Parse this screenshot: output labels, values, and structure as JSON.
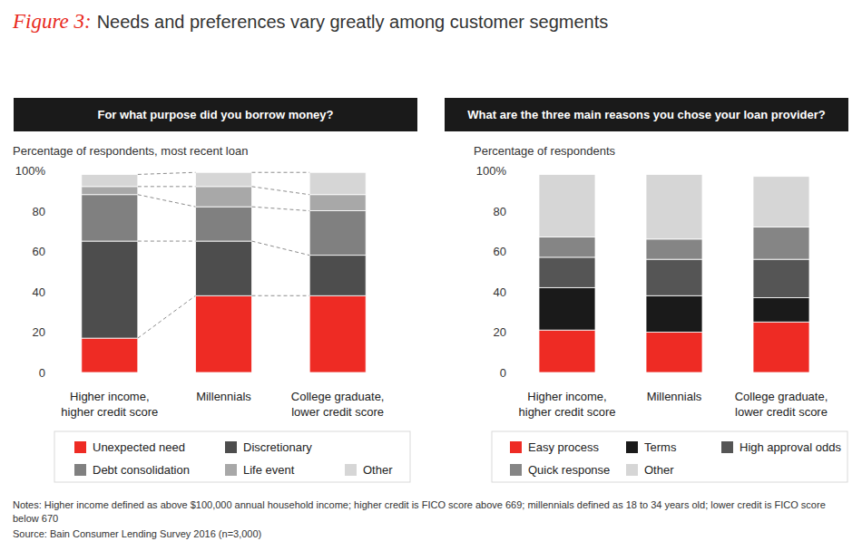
{
  "figure": {
    "label": "Figure 3:",
    "title": "Needs and preferences vary greatly among customer segments"
  },
  "chart_data": [
    {
      "type": "bar",
      "stacked": true,
      "grid": false,
      "title": "For what purpose did you borrow money?",
      "subtitle": "Percentage of respondents, most recent loan",
      "categories": [
        "Higher income, higher credit score",
        "Millennials",
        "College graduate, lower credit score"
      ],
      "ylim": [
        0,
        100
      ],
      "yticks": [
        0,
        20,
        40,
        60,
        80,
        {
          "value": 100,
          "label": "100%"
        }
      ],
      "series": [
        {
          "name": "Unexpected need",
          "color": "#ee2b24",
          "values": [
            17,
            38,
            38
          ]
        },
        {
          "name": "Discretionary",
          "color": "#4d4d4d",
          "values": [
            48,
            27,
            20
          ]
        },
        {
          "name": "Debt consolidation",
          "color": "#808080",
          "values": [
            23,
            17,
            22
          ]
        },
        {
          "name": "Life event",
          "color": "#a8a8a8",
          "values": [
            4,
            10,
            8
          ]
        },
        {
          "name": "Other",
          "color": "#d6d6d6",
          "values": [
            6,
            7,
            11
          ]
        }
      ]
    },
    {
      "type": "bar",
      "stacked": true,
      "grid": false,
      "title": "What are the three main reasons you chose your loan provider?",
      "subtitle": "Percentage of respondents",
      "categories": [
        "Higher income, higher credit score",
        "Millennials",
        "College graduate, lower credit score"
      ],
      "ylim": [
        0,
        100
      ],
      "yticks": [
        0,
        20,
        40,
        60,
        80,
        {
          "value": 100,
          "label": "100%"
        }
      ],
      "series": [
        {
          "name": "Easy process",
          "color": "#ee2b24",
          "values": [
            21,
            20,
            25
          ]
        },
        {
          "name": "Terms",
          "color": "#1a1a1a",
          "values": [
            21,
            18,
            12
          ]
        },
        {
          "name": "High approval odds",
          "color": "#555555",
          "values": [
            15,
            18,
            19
          ]
        },
        {
          "name": "Quick response",
          "color": "#858585",
          "values": [
            10,
            10,
            16
          ]
        },
        {
          "name": "Other",
          "color": "#d6d6d6",
          "values": [
            31,
            32,
            25
          ]
        }
      ]
    }
  ],
  "notes": "Notes: Higher income defined as above $100,000 annual household income; higher credit is FICO score above 669; millennials defined as 18 to 34 years old; lower credit is FICO score below 670",
  "source": "Source: Bain Consumer Lending Survey 2016 (n=3,000)"
}
